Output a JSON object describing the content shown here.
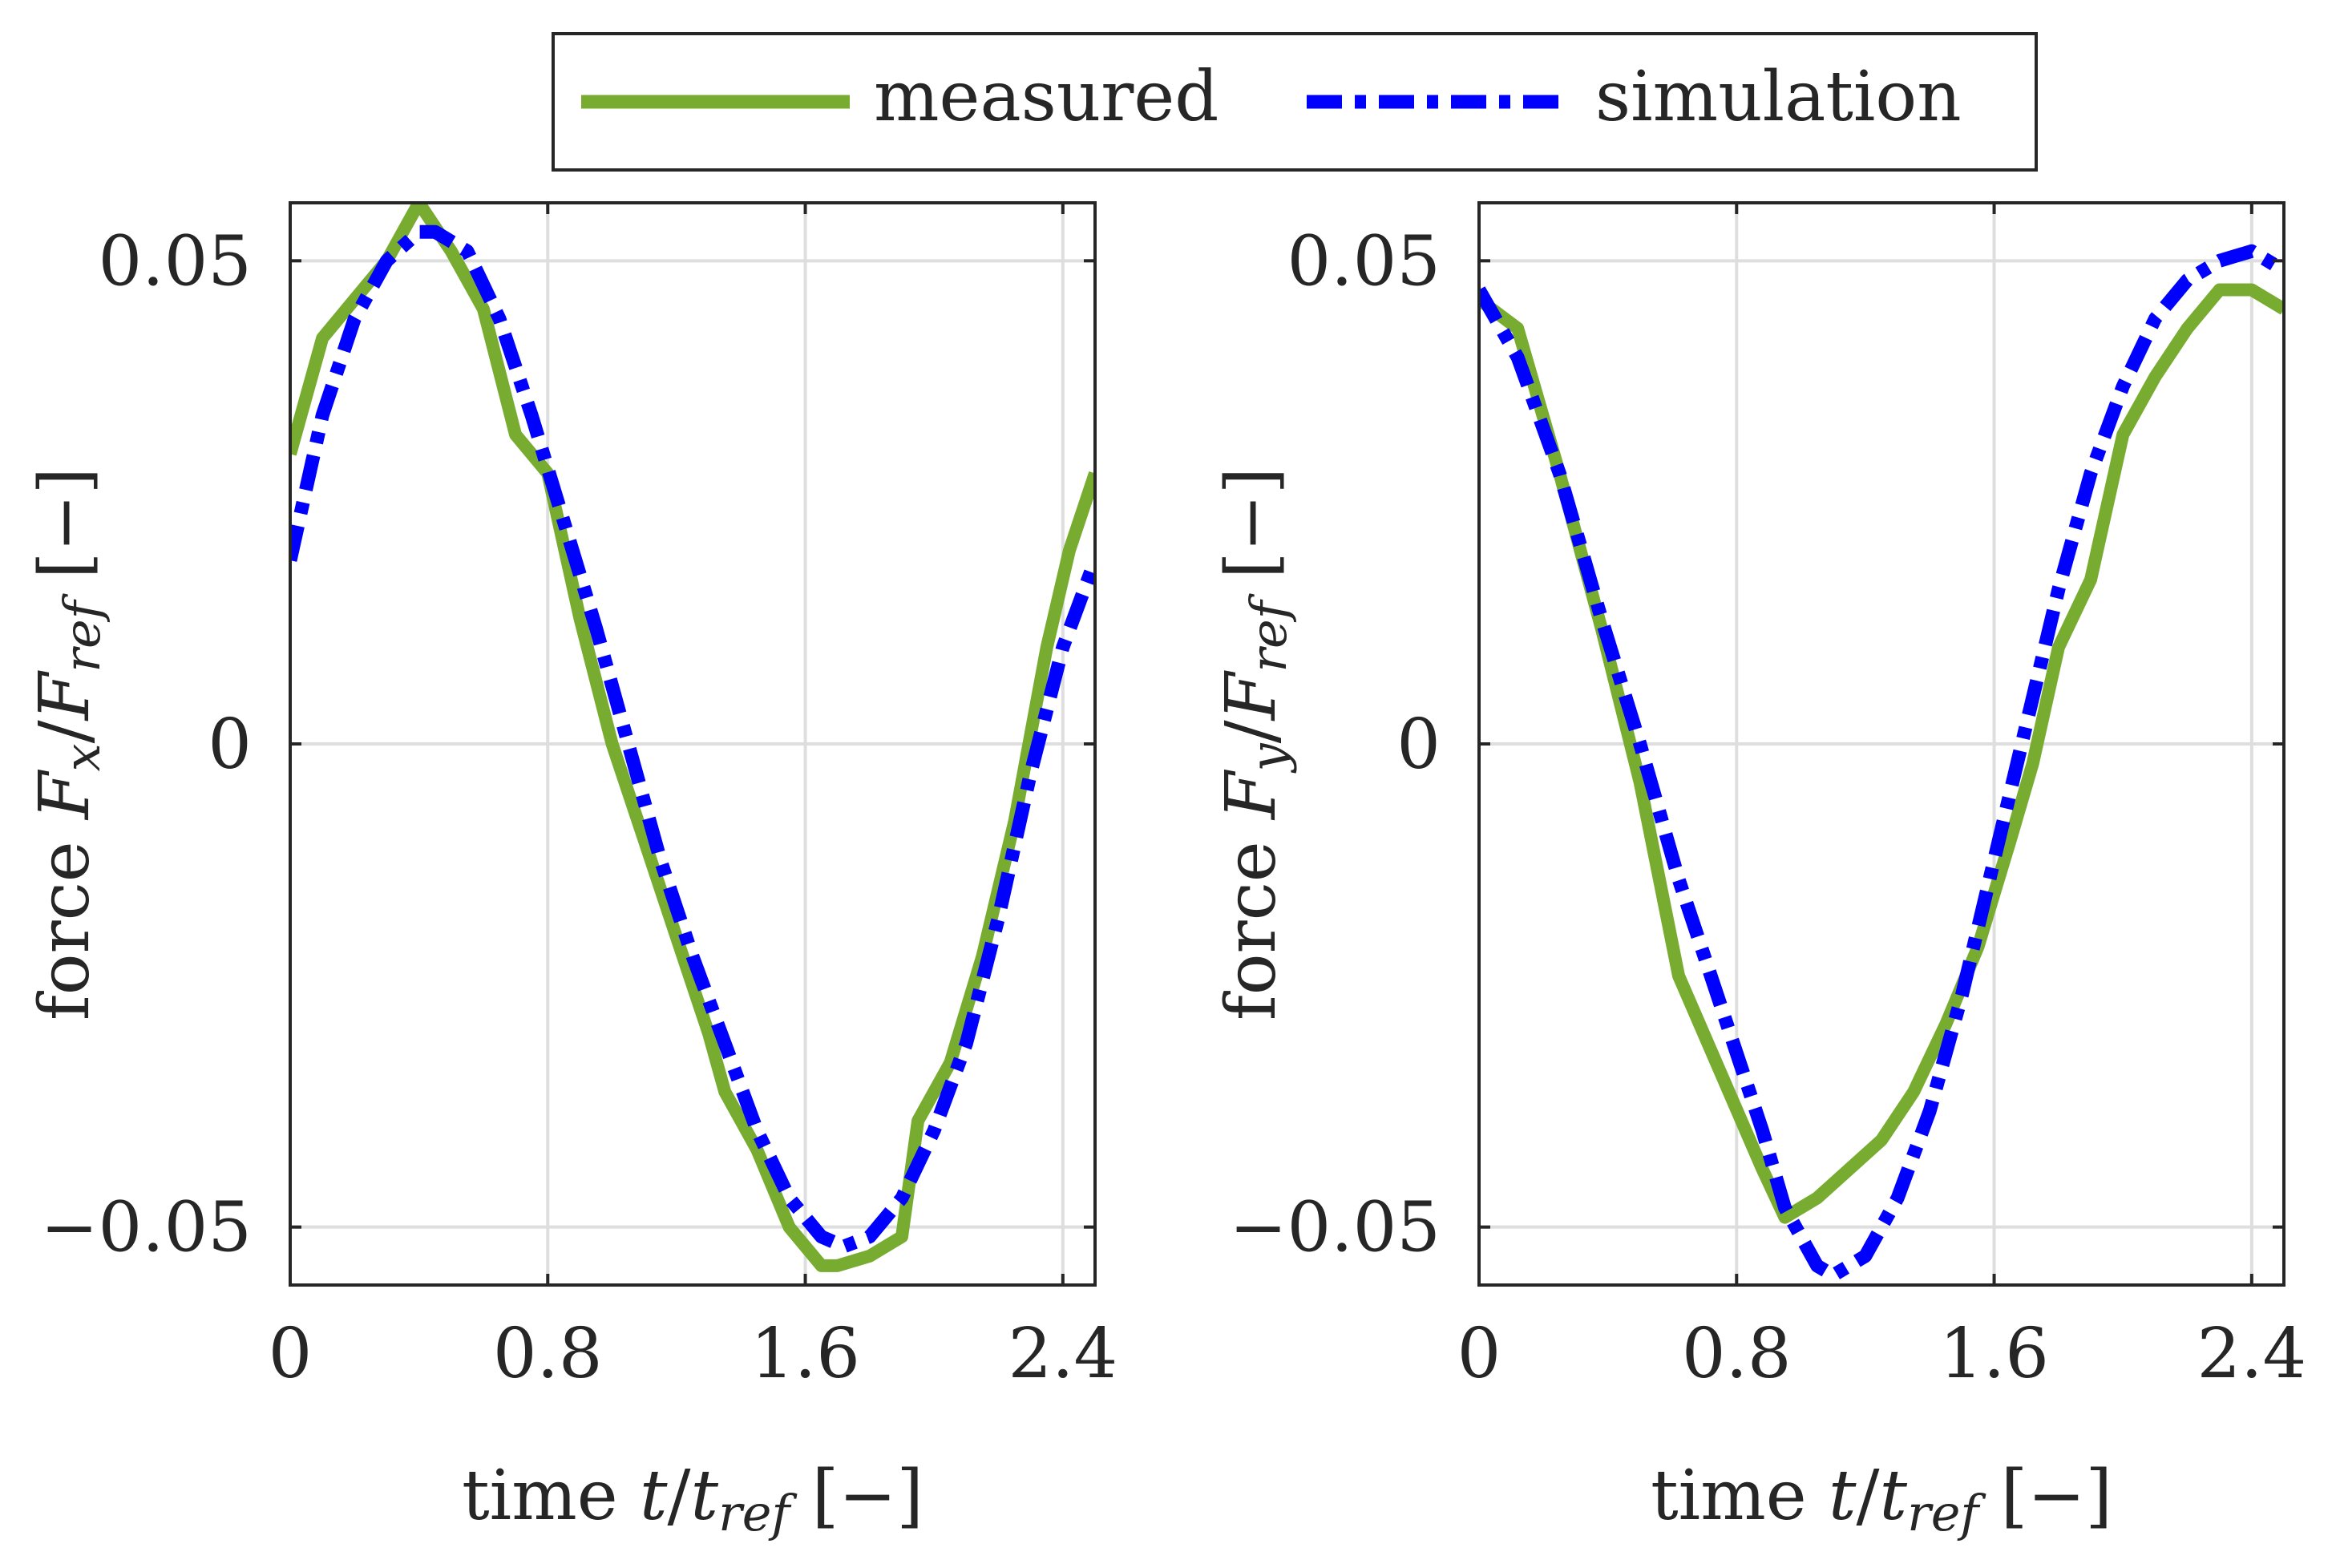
{
  "legend": {
    "items": [
      {
        "label": "measured",
        "color": "#77AC30",
        "style": "solid"
      },
      {
        "label": "simulation",
        "color": "#0000FF",
        "style": "dash-dot"
      }
    ],
    "placement": "top-center"
  },
  "chart_data": [
    {
      "type": "line",
      "xlim": [
        0,
        2.5
      ],
      "ylim": [
        -0.056,
        0.056
      ],
      "xticks": [
        0,
        0.8,
        1.6,
        2.4
      ],
      "xtick_labels": [
        "0",
        "0.8",
        "1.6",
        "2.4"
      ],
      "yticks": [
        -0.05,
        0,
        0.05
      ],
      "ytick_labels": [
        "−0.05",
        "0",
        "0.05"
      ],
      "grid": true,
      "xlabel": {
        "prefix": "time ",
        "sym": "t",
        "slash": "/",
        "sym2": "t",
        "sub": "ref",
        "suffix": " [−]"
      },
      "ylabel": {
        "prefix": "force ",
        "sym": "F",
        "sub": "x",
        "slash": "/",
        "sym2": "F",
        "sub2": "ref",
        "suffix": " [−]"
      },
      "series": [
        {
          "name": "measured",
          "color": "#77AC30",
          "x": [
            0,
            0.1,
            0.2,
            0.3,
            0.4,
            0.5,
            0.6,
            0.7,
            0.8,
            0.9,
            1.0,
            1.1,
            1.2,
            1.3,
            1.35,
            1.45,
            1.55,
            1.65,
            1.7,
            1.8,
            1.9,
            1.95,
            2.05,
            2.15,
            2.25,
            2.35,
            2.42,
            2.5
          ],
          "y": [
            0.03,
            0.042,
            0.046,
            0.05,
            0.056,
            0.051,
            0.045,
            0.032,
            0.028,
            0.013,
            0.0,
            -0.01,
            -0.02,
            -0.03,
            -0.036,
            -0.042,
            -0.05,
            -0.054,
            -0.054,
            -0.053,
            -0.051,
            -0.039,
            -0.033,
            -0.022,
            -0.008,
            0.01,
            0.02,
            0.028
          ]
        },
        {
          "name": "simulation",
          "color": "#0000FF",
          "x": [
            0,
            0.1,
            0.2,
            0.3,
            0.4,
            0.45,
            0.55,
            0.65,
            0.75,
            0.85,
            0.95,
            1.05,
            1.15,
            1.25,
            1.35,
            1.45,
            1.55,
            1.65,
            1.72,
            1.8,
            1.9,
            2.0,
            2.1,
            2.2,
            2.3,
            2.4,
            2.5
          ],
          "y": [
            0.019,
            0.034,
            0.044,
            0.05,
            0.053,
            0.053,
            0.051,
            0.044,
            0.034,
            0.023,
            0.012,
            0.0,
            -0.012,
            -0.022,
            -0.031,
            -0.04,
            -0.047,
            -0.051,
            -0.052,
            -0.051,
            -0.047,
            -0.04,
            -0.031,
            -0.018,
            -0.003,
            0.01,
            0.019
          ]
        }
      ]
    },
    {
      "type": "line",
      "xlim": [
        0,
        2.5
      ],
      "ylim": [
        -0.056,
        0.056
      ],
      "xticks": [
        0,
        0.8,
        1.6,
        2.4
      ],
      "xtick_labels": [
        "0",
        "0.8",
        "1.6",
        "2.4"
      ],
      "yticks": [
        -0.05,
        0,
        0.05
      ],
      "ytick_labels": [
        "−0.05",
        "0",
        "0.05"
      ],
      "grid": true,
      "xlabel": {
        "prefix": "time ",
        "sym": "t",
        "slash": "/",
        "sym2": "t",
        "sub": "ref",
        "suffix": " [−]"
      },
      "ylabel": {
        "prefix": "force ",
        "sym": "F",
        "sub": "y",
        "slash": "/",
        "sym2": "F",
        "sub2": "ref",
        "suffix": " [−]"
      },
      "series": [
        {
          "name": "measured",
          "color": "#77AC30",
          "x": [
            0,
            0.12,
            0.25,
            0.38,
            0.5,
            0.62,
            0.75,
            0.88,
            0.95,
            1.05,
            1.15,
            1.25,
            1.35,
            1.45,
            1.55,
            1.65,
            1.72,
            1.8,
            1.9,
            2.0,
            2.1,
            2.2,
            2.3,
            2.4,
            2.5
          ],
          "y": [
            0.046,
            0.043,
            0.028,
            0.012,
            -0.004,
            -0.024,
            -0.034,
            -0.044,
            -0.049,
            -0.047,
            -0.044,
            -0.041,
            -0.036,
            -0.029,
            -0.021,
            -0.01,
            -0.002,
            0.01,
            0.017,
            0.032,
            0.038,
            0.043,
            0.047,
            0.047,
            0.045
          ]
        },
        {
          "name": "simulation",
          "color": "#0000FF",
          "x": [
            0,
            0.12,
            0.25,
            0.38,
            0.5,
            0.62,
            0.75,
            0.88,
            0.95,
            1.05,
            1.1,
            1.2,
            1.3,
            1.4,
            1.5,
            1.6,
            1.7,
            1.8,
            1.9,
            2.0,
            2.1,
            2.2,
            2.3,
            2.4,
            2.45,
            2.5
          ],
          "y": [
            0.047,
            0.04,
            0.028,
            0.013,
            0.0,
            -0.014,
            -0.027,
            -0.04,
            -0.048,
            -0.054,
            -0.055,
            -0.053,
            -0.047,
            -0.038,
            -0.026,
            -0.012,
            0.002,
            0.016,
            0.028,
            0.037,
            0.044,
            0.048,
            0.05,
            0.051,
            0.05,
            0.049
          ]
        }
      ]
    }
  ]
}
